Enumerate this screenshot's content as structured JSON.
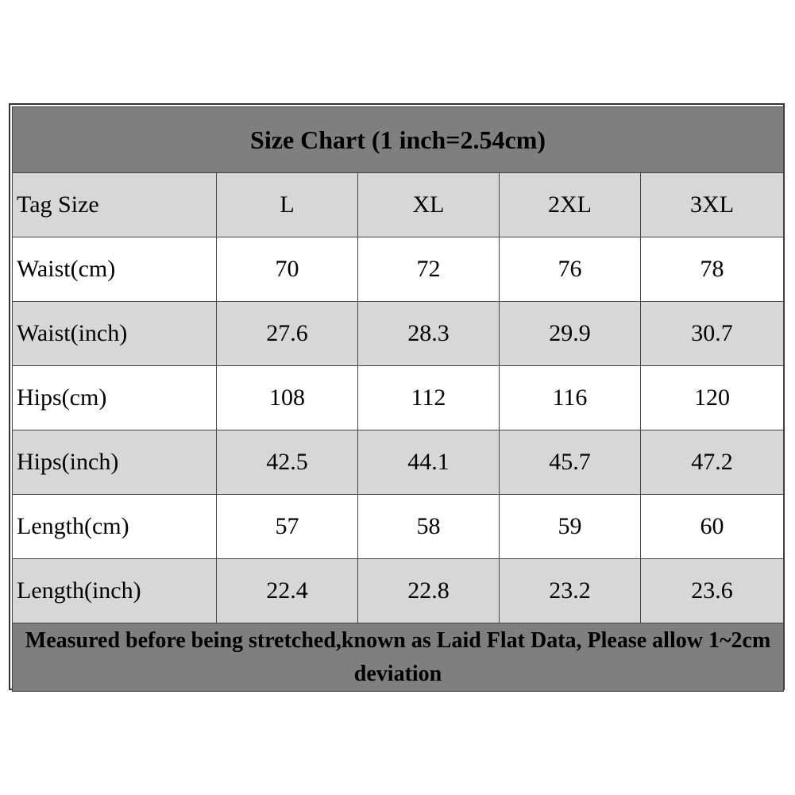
{
  "title": "Size Chart (1 inch=2.54cm)",
  "header": {
    "label": "Tag Size",
    "sizes": [
      "L",
      "XL",
      "2XL",
      "3XL"
    ]
  },
  "rows": [
    {
      "label": "Waist(cm)",
      "values": [
        "70",
        "72",
        "76",
        "78"
      ]
    },
    {
      "label": "Waist(inch)",
      "values": [
        "27.6",
        "28.3",
        "29.9",
        "30.7"
      ]
    },
    {
      "label": "Hips(cm)",
      "values": [
        "108",
        "112",
        "116",
        "120"
      ]
    },
    {
      "label": "Hips(inch)",
      "values": [
        "42.5",
        "44.1",
        "45.7",
        "47.2"
      ]
    },
    {
      "label": "Length(cm)",
      "values": [
        "57",
        "58",
        "59",
        "60"
      ]
    },
    {
      "label": "Length(inch)",
      "values": [
        "22.4",
        "22.8",
        "23.2",
        "23.6"
      ]
    }
  ],
  "note": "Measured before being stretched,known as Laid Flat Data, Please allow 1~2cm deviation",
  "colors": {
    "header_band": "#7f7f7f",
    "gray_row": "#d7d7d7",
    "white_row": "#ffffff"
  }
}
